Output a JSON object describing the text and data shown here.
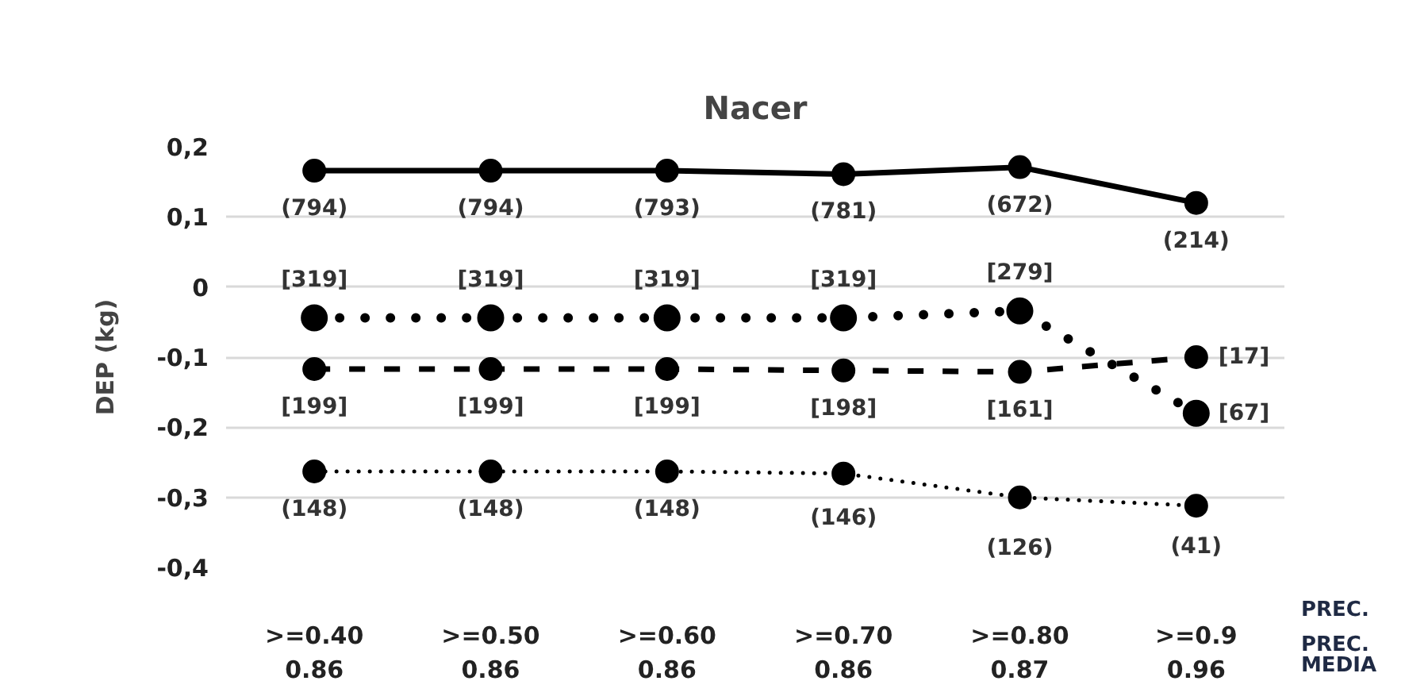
{
  "chart_data": {
    "type": "line",
    "title": "Nacer",
    "ylabel": "DEP (kg)",
    "categories": [
      ">=0.40\n0.86",
      ">=0.50\n0.86",
      ">=0.60\n0.86",
      ">=0.70\n0.86",
      ">=0.80\n0.87",
      ">=0.9\n0.96"
    ],
    "series": [
      {
        "color": "#000000",
        "line_style": "solid",
        "values": [
          0.166,
          0.166,
          0.166,
          0.161,
          0.171,
          0.12
        ]
      },
      {
        "color": "#000000",
        "line_style": "dotted",
        "values": [
          -0.044,
          -0.044,
          -0.044,
          -0.044,
          -0.034,
          -0.18
        ]
      },
      {
        "color": "#000000",
        "line_style": "dashed",
        "values": [
          -0.117,
          -0.117,
          -0.117,
          -0.119,
          -0.121,
          -0.1
        ]
      },
      {
        "color": "#000000",
        "line_style": "dotted",
        "values": [
          -0.263,
          -0.263,
          -0.263,
          -0.266,
          -0.3,
          -0.312
        ]
      }
    ],
    "ylim": [
      -0.4,
      0.2
    ],
    "yticks": [
      {
        "value": 0.2,
        "label": "0,2"
      },
      {
        "value": 0.1,
        "label": "0,1"
      },
      0,
      {
        "value": -0.1,
        "label": "-0,1"
      },
      {
        "value": -0.2,
        "label": "-0,2"
      },
      {
        "value": -0.3,
        "label": "-0,3"
      },
      {
        "value": -0.4,
        "label": "-0,4"
      }
    ],
    "grid": "y",
    "marker": "circle",
    "annotations": [
      {
        "text": "(794)",
        "x": ">=0.40\n0.86",
        "y": 0.166
      },
      {
        "text": "(794)",
        "x": ">=0.50\n0.86",
        "y": 0.166
      },
      {
        "text": "(793)",
        "x": ">=0.60\n0.86",
        "y": 0.166
      },
      {
        "text": "(781)",
        "x": ">=0.70\n0.86",
        "y": 0.161
      },
      {
        "text": "(672)",
        "x": ">=0.80\n0.87",
        "y": 0.171
      },
      {
        "text": "(214)",
        "x": ">=0.9\n0.96",
        "y": 0.12
      },
      {
        "text": "[319]",
        "x": ">=0.40\n0.86",
        "y": -0.044
      },
      {
        "text": "[319]",
        "x": ">=0.50\n0.86",
        "y": -0.044
      },
      {
        "text": "[319]",
        "x": ">=0.60\n0.86",
        "y": -0.044
      },
      {
        "text": "[319]",
        "x": ">=0.70\n0.86",
        "y": -0.044
      },
      {
        "text": "[279]",
        "x": ">=0.80\n0.87",
        "y": -0.034
      },
      {
        "text": "[67]",
        "x": ">=0.9\n0.96",
        "y": -0.18
      },
      {
        "text": "[199]",
        "x": ">=0.40\n0.86",
        "y": -0.117
      },
      {
        "text": "[199]",
        "x": ">=0.50\n0.86",
        "y": -0.117
      },
      {
        "text": "[199]",
        "x": ">=0.60\n0.86",
        "y": -0.117
      },
      {
        "text": "[198]",
        "x": ">=0.70\n0.86",
        "y": -0.119
      },
      {
        "text": "[161]",
        "x": ">=0.80\n0.87",
        "y": -0.121
      },
      {
        "text": "[17]",
        "x": ">=0.9\n0.96",
        "y": -0.1
      },
      {
        "text": "(148)",
        "x": ">=0.40\n0.86",
        "y": -0.263
      },
      {
        "text": "(148)",
        "x": ">=0.50\n0.86",
        "y": -0.263
      },
      {
        "text": "(148)",
        "x": ">=0.60\n0.86",
        "y": -0.263
      },
      {
        "text": "(146)",
        "x": ">=0.70\n0.86",
        "y": -0.266
      },
      {
        "text": "(126)",
        "x": ">=0.80\n0.87",
        "y": -0.3
      },
      {
        "text": "(41)",
        "x": ">=0.9\n0.96",
        "y": -0.312
      },
      "PREC.",
      "PREC.\nMEDIA"
    ]
  }
}
